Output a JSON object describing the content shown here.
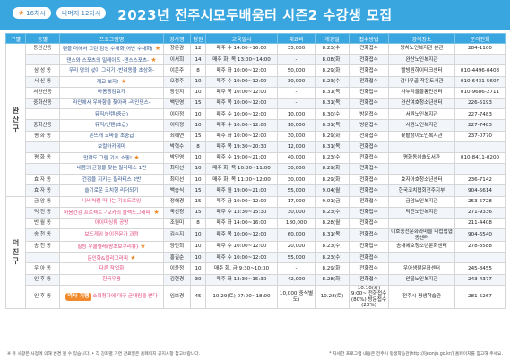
{
  "header": {
    "title": "2023년 전주시모두배움터 시즌2 수강생 모집",
    "legend": [
      {
        "icon": "star-icon",
        "label": "16차시"
      },
      {
        "icon": "",
        "label": "나머지 12차시"
      }
    ]
  },
  "columns": [
    "구별",
    "동별",
    "프로그램명",
    "강사명",
    "정원",
    "교육일시",
    "재료비",
    "개강일",
    "접수방법",
    "강의장소",
    "문의전화"
  ],
  "groups": [
    {
      "name": "완산구"
    },
    {
      "name": "덕진구"
    }
  ],
  "rows": [
    {
      "group": 0,
      "dong": "동완산동",
      "prog": "팬플 더해서 그린 감성 수채화(어반 수채화)",
      "star": true,
      "teacher": "장문감",
      "cap": "12",
      "time": "매주 수 14:00~16:00",
      "fee": "35,000",
      "start": "8.23(수)",
      "method": "전화접수",
      "place": "망치노인복지관 본관",
      "phone": "284-1100"
    },
    {
      "group": 0,
      "dong": "",
      "prog": "댄스와 스포츠의 밀레이즈 -댄스스포츠-",
      "star": true,
      "teacher": "이서희",
      "cap": "14",
      "time": "매주 화, 목 13:00~14:00",
      "fee": "-",
      "start": "8.08(화)",
      "method": "전화접수",
      "place": "완산노인복지관",
      "phone": ""
    },
    {
      "group": 0,
      "dong": "삼 성 동",
      "prog": "우리 명의 넋이 그리기 -반려동물 초상화-",
      "star": false,
      "teacher": "이은주",
      "cap": "8",
      "time": "매주 화 10:00~12:00",
      "fee": "50,000",
      "start": "8.29(화)",
      "method": "전화접수",
      "place": "빨빙원하이테크센터",
      "phone": "010-4496-0408"
    },
    {
      "group": 0,
      "dong": "서 신 동",
      "prog": "재교 보자!",
      "star": true,
      "teacher": "오정주",
      "cap": "10",
      "time": "매주 수 10:00~12:00",
      "fee": "30,000",
      "start": "8.23(수)",
      "method": "전화접수",
      "place": "검나무골 작은도서관",
      "phone": "010-6431-5607"
    },
    {
      "group": 0,
      "dong": "서완산동",
      "prog": "마음챙김요가",
      "star": false,
      "teacher": "장인지",
      "cap": "10",
      "time": "매주 목 10:00~12:00",
      "fee": "-",
      "start": "8.31(목)",
      "method": "전화접수",
      "place": "사누리울울통민센터",
      "phone": "010-9686-2711"
    },
    {
      "group": 0,
      "dong": "중화산동",
      "prog": "라인에서 우아함을 찾아라 -라인댄스-",
      "star": false,
      "teacher": "백민영",
      "cap": "15",
      "time": "매주 목 10:00~12:00",
      "fee": "-",
      "start": "8.31(목)",
      "method": "전화접수",
      "place": "완산여호청소년센터",
      "phone": "226-5193"
    },
    {
      "group": 0,
      "dong": "",
      "prog": "뮤직/닌텐(중급)",
      "star": false,
      "teacher": "이미정",
      "cap": "10",
      "time": "매주 수 10:00~12:00",
      "fee": "10,000",
      "start": "8.30(수)",
      "method": "방문접수",
      "place": "서원노인복지관",
      "phone": "227-7483"
    },
    {
      "group": 0,
      "dong": "중화산동",
      "prog": "뮤직/닌텐(초급)",
      "star": false,
      "teacher": "이미정",
      "cap": "10",
      "time": "매주 수 10:00~12:00",
      "fee": "10,000",
      "start": "8.31(목)",
      "method": "방문접수",
      "place": "서원노인복지관",
      "phone": "227-7483"
    },
    {
      "group": 0,
      "dong": "평 화 동",
      "prog": "손뜨개 코바늘 초중급",
      "star": false,
      "teacher": "최혜연",
      "cap": "15",
      "time": "매주 화 10:00~12:00",
      "fee": "30,000",
      "start": "8.29(화)",
      "method": "전화접수",
      "place": "꽃밭정이노인복지관",
      "phone": "237-0770"
    },
    {
      "group": 0,
      "dong": "",
      "prog": "보컬아카데미",
      "star": false,
      "teacher": "박혁수",
      "cap": "8",
      "time": "매주 목 19:30~20:30",
      "fee": "12,000",
      "start": "8.31(목)",
      "method": "전화접수",
      "place": "",
      "phone": ""
    },
    {
      "group": 0,
      "dong": "평 화 동",
      "prog": "만작도 그림 기초 쇼핑!",
      "star": true,
      "teacher": "박민영",
      "cap": "10",
      "time": "매주 수 19:00~21:00",
      "fee": "40,000",
      "start": "8.23(수)",
      "method": "전화접수",
      "place": "평화동이솔도서관",
      "phone": "010-8411-0200"
    },
    {
      "group": 0,
      "dong": "",
      "prog": "내몸의 균형을 찾는 필라테스 1반",
      "star": false,
      "teacher": "최미선",
      "cap": "10",
      "time": "매주 화, 목 10:00~11:00",
      "fee": "30,000",
      "start": "8.29(화)",
      "method": "전화접수",
      "place": "",
      "phone": ""
    },
    {
      "group": 0,
      "dong": "효 자 동",
      "prog": "건강을 지키는 필라테스 2반",
      "star": false,
      "teacher": "최미선",
      "cap": "10",
      "time": "매주 화, 목 11:00~12:00",
      "fee": "30,000",
      "start": "8.29(화)",
      "method": "전화접수",
      "place": "효자아호청소년센터",
      "phone": "236-7142"
    },
    {
      "group": 0,
      "dong": "효 자 동",
      "prog": "슬기로운 코치형 리더되기",
      "star": false,
      "teacher": "백승식",
      "cap": "15",
      "time": "매주 월 19:00~21:00",
      "fee": "55,000",
      "start": "9.04(월)",
      "method": "전화접수",
      "place": "한국코치협회전주지부",
      "phone": "904-5614"
    },
    {
      "group": 1,
      "dong": "금 암 동",
      "prog": "나비처럼 떠나는 기초드로잉",
      "star": false,
      "teacher": "정해경",
      "cap": "15",
      "time": "매주 금 10:00~12:00",
      "fee": "17,000",
      "start": "9.01(금)",
      "method": "전화접수",
      "place": "금암노인복지관",
      "phone": "253-5728"
    },
    {
      "group": 1,
      "dong": "덕 진 동",
      "prog": "마음건강 프로젝트 -'오카의 블랙노그래피'",
      "star": true,
      "teacher": "국선경",
      "cap": "15",
      "time": "매주 수 13:30~15:30",
      "fee": "30,000",
      "start": "8.23(수)",
      "method": "전화접수",
      "place": "덕진노인복지관",
      "phone": "271-9336"
    },
    {
      "group": 1,
      "dong": "반 월 동",
      "prog": "아이미싱류 공방",
      "star": false,
      "teacher": "조원미",
      "cap": "8",
      "time": "매주 화 14:00~16:00",
      "fee": "180,000",
      "start": "8.28(월)",
      "method": "전화접수",
      "place": "",
      "phone": "211-4408"
    },
    {
      "group": 1,
      "dong": "송 천 동",
      "prog": "보드게임 놀이전문가 과정",
      "star": false,
      "teacher": "김수지",
      "cap": "10",
      "time": "매주 목 10:00~12:00",
      "fee": "60,000",
      "start": "8.31(목)",
      "method": "전화접수",
      "place": "이호송천문화와마을 디럽랩협동센터",
      "phone": "904-6540"
    },
    {
      "group": 1,
      "dong": "송 천 동",
      "prog": "힐링 우쿨렐레(왕초보쿠리뷰)",
      "star": true,
      "teacher": "양민희",
      "cap": "10",
      "time": "매주 수 10:00~12:00",
      "fee": "20,000",
      "start": "8.23(수)",
      "method": "전화접수",
      "place": "송내에호청소년문화센터",
      "phone": "278-8588"
    },
    {
      "group": 1,
      "dong": "",
      "prog": "문인화&캘리그라피",
      "star": true,
      "teacher": "홍길순",
      "cap": "10",
      "time": "매주 수 10:00~12:00",
      "fee": "55,000",
      "start": "8.23(수)",
      "method": "전화접수",
      "place": "",
      "phone": ""
    },
    {
      "group": 1,
      "dong": "우 아 동",
      "prog": "다른 작업화",
      "star": false,
      "teacher": "이윤정",
      "cap": "10",
      "time": "매주 화, 금 9:30~10:30",
      "fee": "-",
      "start": "8.29(화)",
      "method": "전화접수",
      "place": "우아생활문화센터",
      "phone": "245-8455"
    },
    {
      "group": 1,
      "dong": "인 후 동",
      "prog": "한국무용",
      "star": false,
      "teacher": "김현경",
      "cap": "30",
      "time": "매주 화 13:30~15:30",
      "fee": "42,000",
      "start": "8.28(화)",
      "method": "전화접수",
      "place": "안골노인복지관",
      "phone": "243-4377"
    },
    {
      "group": 1,
      "dong": "인 후 동",
      "prog": "소확청자에 대구 군대림을 받다",
      "star": false,
      "special": "역사 기행",
      "teacher": "임보경",
      "cap": "45",
      "time": "10.29(토) 07:00~18:00",
      "fee": "10,000(중식별도)",
      "start": "10.28(토)",
      "method": "10.10(화) 9:00~ 전화접수 (80%) 방문접수(20%)",
      "place": "전주시 평생학습관",
      "phone": "281-5267"
    }
  ],
  "footer": {
    "left": "※ 유 사항은 사정에 의해 변경 될 수 있습니다.   • 각 강좌별 가면 관료일은 홈페이지 공지사항 참고바랍니다.",
    "right": "* 자세한 프로그램 내용은 전주시 평생학습관(http://ljeonju.go.kr/) 홈페이지를 참고해 주세요."
  }
}
